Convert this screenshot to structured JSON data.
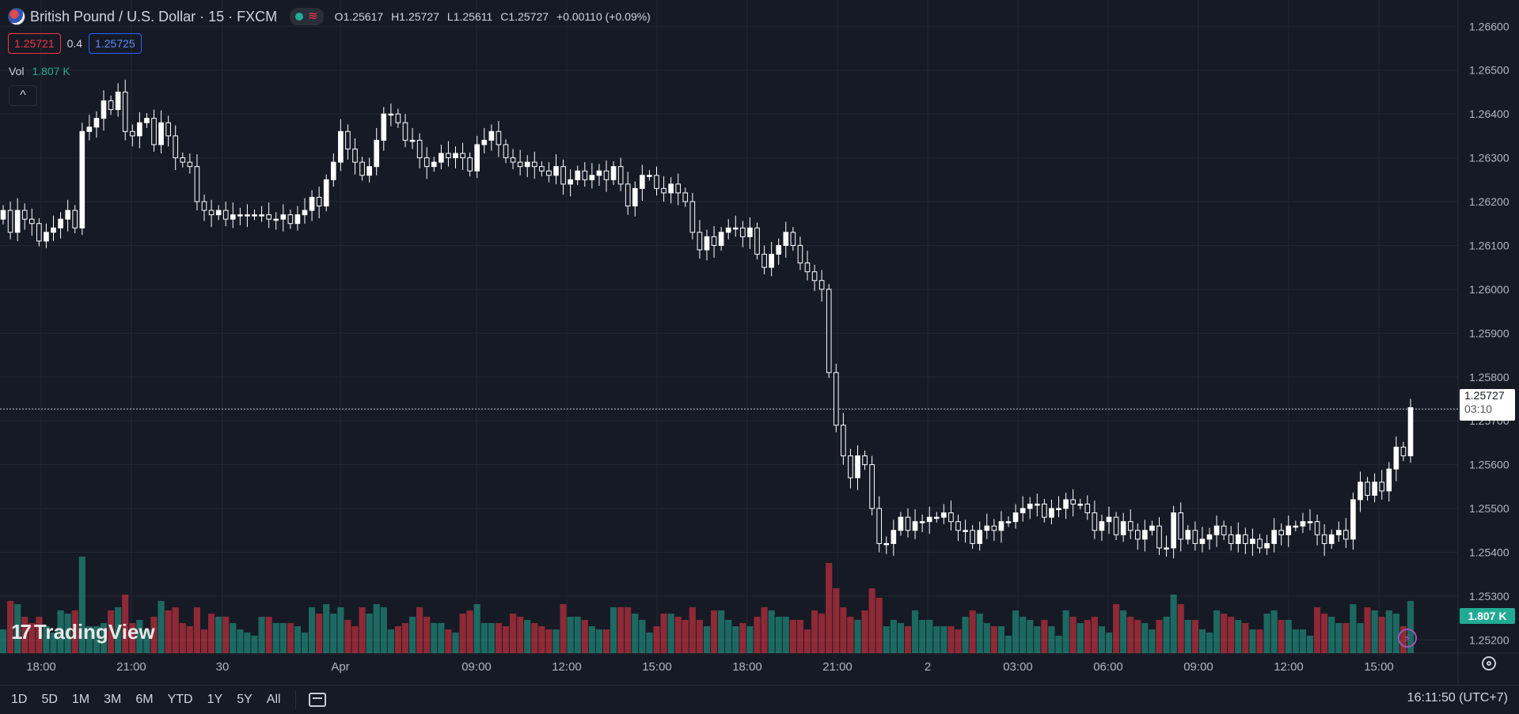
{
  "header": {
    "symbol": "British Pound / U.S. Dollar · 15 · FXCM",
    "ohlc": [
      {
        "k": "O",
        "v": "1.25617"
      },
      {
        "k": "H",
        "v": "1.25727"
      },
      {
        "k": "L",
        "v": "1.25611"
      },
      {
        "k": "C",
        "v": "1.25727"
      }
    ],
    "change": "+0.00110 (+0.09%)",
    "bid": "1.25721",
    "spread": "0.4",
    "ask": "1.25725",
    "vol_label": "Vol",
    "vol_value": "1.807 K",
    "collapse": "^"
  },
  "watermark": "TradingView",
  "price_tag": {
    "price": "1.25727",
    "countdown": "03:10"
  },
  "vol_tag": "1.807 K",
  "bottom": {
    "ranges": [
      "1D",
      "5D",
      "1M",
      "3M",
      "6M",
      "YTD",
      "1Y",
      "5Y",
      "All"
    ],
    "clock": "16:11:50 (UTC+7)"
  },
  "colors": {
    "up": "#22ab94",
    "down": "#f23645",
    "candle": "#ffffff",
    "bg": "#161a25",
    "grid": "#242832"
  },
  "chart_data": {
    "type": "candlestick",
    "title": "British Pound / U.S. Dollar · 15 · FXCM",
    "y_ticks": [
      "1.26600",
      "1.26500",
      "1.26400",
      "1.26300",
      "1.26200",
      "1.26100",
      "1.26000",
      "1.25900",
      "1.25800",
      "1.25700",
      "1.25600",
      "1.25500",
      "1.25400",
      "1.25300",
      "1.25200"
    ],
    "x_ticks": [
      "18:00",
      "21:00",
      "30",
      "Apr",
      "09:00",
      "12:00",
      "15:00",
      "18:00",
      "21:00",
      "2",
      "03:00",
      "06:00",
      "09:00",
      "12:00",
      "15:00"
    ],
    "ylim": [
      1.2517,
      1.2666
    ],
    "last_price": 1.25727,
    "close": [
      1.2618,
      1.2613,
      1.2618,
      1.2616,
      1.2615,
      1.2611,
      1.2613,
      1.2614,
      1.2616,
      1.2618,
      1.2614,
      1.2636,
      1.2637,
      1.2639,
      1.2643,
      1.2641,
      1.2645,
      1.2636,
      1.2635,
      1.2638,
      1.2639,
      1.2633,
      1.2638,
      1.2635,
      1.263,
      1.2629,
      1.2628,
      1.262,
      1.2618,
      1.2617,
      1.2618,
      1.2616,
      1.2617,
      1.2617,
      1.2617,
      1.2617,
      1.2617,
      1.2616,
      1.2616,
      1.2617,
      1.2615,
      1.2617,
      1.2618,
      1.2621,
      1.2619,
      1.2625,
      1.2629,
      1.2636,
      1.2632,
      1.2629,
      1.2626,
      1.2628,
      1.2634,
      1.264,
      1.264,
      1.2638,
      1.2634,
      1.2634,
      1.263,
      1.2628,
      1.2629,
      1.2631,
      1.263,
      1.2631,
      1.263,
      1.2627,
      1.2633,
      1.2634,
      1.2636,
      1.2633,
      1.263,
      1.2629,
      1.2628,
      1.2629,
      1.2628,
      1.2627,
      1.2626,
      1.2628,
      1.2624,
      1.2625,
      1.2627,
      1.2625,
      1.2626,
      1.2627,
      1.2625,
      1.2628,
      1.2624,
      1.2619,
      1.2623,
      1.2626,
      1.2626,
      1.2623,
      1.2622,
      1.2624,
      1.2622,
      1.262,
      1.2613,
      1.2609,
      1.2612,
      1.261,
      1.2613,
      1.2614,
      1.2614,
      1.2612,
      1.2614,
      1.2608,
      1.2605,
      1.2608,
      1.261,
      1.2613,
      1.261,
      1.2606,
      1.2604,
      1.2602,
      1.26,
      1.2581,
      1.2569,
      1.2562,
      1.2557,
      1.2562,
      1.256,
      1.255,
      1.2542,
      1.2542,
      1.2545,
      1.2548,
      1.2545,
      1.2547,
      1.2547,
      1.2548,
      1.2548,
      1.2549,
      1.2547,
      1.2545,
      1.2545,
      1.2542,
      1.2545,
      1.2546,
      1.2545,
      1.2547,
      1.2547,
      1.2549,
      1.255,
      1.2551,
      1.2551,
      1.2548,
      1.255,
      1.255,
      1.2552,
      1.2551,
      1.2551,
      1.2549,
      1.2545,
      1.2547,
      1.2548,
      1.2544,
      1.2547,
      1.2545,
      1.2543,
      1.2545,
      1.2546,
      1.2541,
      1.2541,
      1.2549,
      1.2543,
      1.2545,
      1.2542,
      1.2543,
      1.2544,
      1.2546,
      1.2544,
      1.2542,
      1.2544,
      1.2542,
      1.2543,
      1.2541,
      1.2542,
      1.2545,
      1.2544,
      1.2546,
      1.2546,
      1.2547,
      1.2547,
      1.2544,
      1.2542,
      1.2544,
      1.2545,
      1.2543,
      1.2552,
      1.2556,
      1.2553,
      1.2556,
      1.2554,
      1.2559,
      1.2564,
      1.2562,
      1.2573
    ]
  }
}
